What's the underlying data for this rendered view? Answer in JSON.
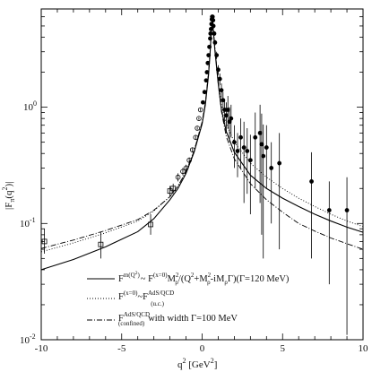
{
  "chart_data": {
    "type": "scatter",
    "title": "",
    "xlabel": "q² [GeV²]",
    "ylabel": "|F_π(q²)|",
    "xlim": [
      -10,
      10
    ],
    "ylim": [
      0.01,
      7
    ],
    "yscale": "log",
    "grid": false,
    "legend_placement": "bottom-right",
    "x_ticks": [
      -10,
      -5,
      0,
      5,
      10
    ],
    "x_tick_labels": [
      "-10",
      "-5",
      "0",
      "5",
      "10"
    ],
    "y_ticks": [
      0.01,
      0.1,
      1
    ],
    "y_tick_labels": [
      "10⁻²",
      "10⁻¹",
      "10⁰"
    ],
    "series": [
      {
        "name": "F^{m(Q²)} ~ F^{(x=0)} M²_ρ/(Q²+M²_ρ−iM_ρΓ) (Γ=120 MeV)",
        "legend_text": "F^{m(Q²)} ~ F^{(x=0)} M²_ρ/(Q² + M²_ρ - iM_ρΓ)(Γ=120 MeV)",
        "style": "solid",
        "x": [
          -10,
          -8,
          -6,
          -4,
          -3,
          -2,
          -1.5,
          -1,
          -0.5,
          0,
          0.2,
          0.4,
          0.5,
          0.55,
          0.6,
          0.65,
          0.7,
          0.8,
          1,
          1.2,
          1.5,
          2,
          3,
          4,
          5,
          6,
          7,
          8,
          9,
          10
        ],
        "y": [
          0.04,
          0.049,
          0.063,
          0.085,
          0.11,
          0.16,
          0.2,
          0.27,
          0.41,
          0.72,
          1.05,
          1.9,
          3.0,
          4.0,
          4.9,
          5.1,
          4.5,
          3.0,
          1.6,
          0.95,
          0.62,
          0.41,
          0.26,
          0.2,
          0.165,
          0.14,
          0.12,
          0.105,
          0.093,
          0.084
        ]
      },
      {
        "name": "F^{(x=0)} ~ F^{AdS/QCD}_{(u.c.)}",
        "legend_text": "F^{(x=0)} ~ F^{AdS/QCD}_{(u.c.)}",
        "style": "dotted",
        "x": [
          -10,
          -8,
          -6,
          -4,
          -3,
          -2,
          -1.5,
          -1,
          -0.5,
          0,
          0.2,
          0.4,
          0.5,
          0.55,
          0.6,
          0.65,
          0.7,
          0.8,
          1,
          1.2,
          1.5,
          2,
          3,
          4,
          5,
          6,
          7,
          8,
          9,
          10
        ],
        "y": [
          0.057,
          0.068,
          0.083,
          0.105,
          0.128,
          0.17,
          0.21,
          0.28,
          0.42,
          0.74,
          1.08,
          1.95,
          3.05,
          4.1,
          5.0,
          5.2,
          4.6,
          3.1,
          1.7,
          1.05,
          0.72,
          0.5,
          0.33,
          0.25,
          0.2,
          0.165,
          0.14,
          0.12,
          0.105,
          0.094
        ]
      },
      {
        "name": "F^{AdS/QCD}_{(confined)} with width Γ=100 MeV",
        "legend_text": "F^{AdS/QCD}_{(confined)} with width Γ=100 MeV",
        "style": "dashdot",
        "x": [
          -10,
          -8,
          -6,
          -4,
          -3,
          -2,
          -1.5,
          -1,
          -0.5,
          0,
          0.2,
          0.4,
          0.5,
          0.55,
          0.6,
          0.65,
          0.7,
          0.8,
          1,
          1.2,
          1.5,
          2,
          3,
          4,
          5,
          6,
          7,
          8,
          9,
          10
        ],
        "y": [
          0.061,
          0.072,
          0.087,
          0.108,
          0.13,
          0.17,
          0.21,
          0.28,
          0.42,
          0.75,
          1.1,
          2.0,
          3.1,
          4.2,
          5.3,
          5.6,
          4.9,
          3.2,
          1.6,
          0.92,
          0.56,
          0.36,
          0.22,
          0.16,
          0.125,
          0.1,
          0.086,
          0.075,
          0.067,
          0.06
        ]
      }
    ],
    "measurements": {
      "x": [
        -9.8,
        -6.3,
        -3.2,
        -2.0,
        -1.8,
        -1.5,
        -1.2,
        -1.0,
        -0.8,
        -0.6,
        -0.4,
        -0.3,
        -0.2,
        -0.1,
        0.05,
        0.15,
        0.25,
        0.3,
        0.35,
        0.4,
        0.45,
        0.5,
        0.52,
        0.55,
        0.58,
        0.6,
        0.62,
        0.65,
        0.68,
        0.7,
        0.75,
        0.8,
        0.9,
        1.0,
        1.1,
        1.2,
        1.3,
        1.4,
        1.5,
        1.6,
        1.7,
        1.8,
        2.0,
        2.2,
        2.4,
        2.6,
        2.8,
        3.0,
        3.3,
        3.6,
        3.7,
        3.8,
        4.0,
        4.3,
        4.8,
        6.8,
        7.9,
        9.0
      ],
      "y": [
        0.07,
        0.066,
        0.098,
        0.19,
        0.2,
        0.25,
        0.28,
        0.3,
        0.35,
        0.43,
        0.55,
        0.66,
        0.8,
        0.95,
        1.1,
        1.35,
        1.7,
        2.0,
        2.4,
        2.8,
        3.3,
        3.9,
        4.3,
        4.7,
        5.2,
        5.7,
        6.0,
        6.0,
        5.6,
        5.0,
        4.3,
        3.6,
        2.8,
        2.1,
        1.75,
        1.4,
        1.15,
        0.95,
        0.85,
        0.95,
        0.75,
        0.8,
        0.5,
        0.42,
        0.55,
        0.45,
        0.42,
        0.35,
        0.55,
        0.6,
        0.48,
        0.38,
        0.45,
        0.3,
        0.33,
        0.23,
        0.13,
        0.13
      ],
      "ylow": [
        0.055,
        0.05,
        0.08,
        0.17,
        0.18,
        0.23,
        0.26,
        0.28,
        0.33,
        0.41,
        0.53,
        0.64,
        0.78,
        0.92,
        1.07,
        1.3,
        1.65,
        1.95,
        2.3,
        2.7,
        3.2,
        3.8,
        4.2,
        4.6,
        5.0,
        5.5,
        5.8,
        5.8,
        5.4,
        4.8,
        4.1,
        3.4,
        2.6,
        1.9,
        1.55,
        1.2,
        0.95,
        0.75,
        0.6,
        0.65,
        0.5,
        0.55,
        0.3,
        0.25,
        0.3,
        0.15,
        0.18,
        0.12,
        0.2,
        0.15,
        0.08,
        0.05,
        0.2,
        0.1,
        0.06,
        0.05,
        0.03,
        0.011
      ],
      "yhigh": [
        0.09,
        0.085,
        0.12,
        0.21,
        0.22,
        0.27,
        0.3,
        0.32,
        0.37,
        0.45,
        0.57,
        0.68,
        0.82,
        0.98,
        1.13,
        1.4,
        1.75,
        2.05,
        2.5,
        2.9,
        3.4,
        4.0,
        4.4,
        4.8,
        5.4,
        5.9,
        6.2,
        6.2,
        5.8,
        5.2,
        4.5,
        3.8,
        3.0,
        2.3,
        1.95,
        1.6,
        1.35,
        1.15,
        1.1,
        1.25,
        1.0,
        1.05,
        0.7,
        0.6,
        0.8,
        0.75,
        0.66,
        0.58,
        0.9,
        1.05,
        0.88,
        0.71,
        0.7,
        0.5,
        0.6,
        0.41,
        0.23,
        0.25
      ]
    }
  },
  "axes": {
    "xlabel_main": "q",
    "xlabel_sup": "2",
    "xlabel_unit": " [GeV",
    "xlabel_unit_sup": "2",
    "xlabel_close": "]",
    "ylabel_main": "|F",
    "ylabel_sub": "π",
    "ylabel_mid": "(q",
    "ylabel_sup": "2",
    "ylabel_end": ")|",
    "x_tick_labels": [
      "-10",
      "-5",
      "0",
      "5",
      "10"
    ],
    "y_tick_base": [
      "10",
      "10",
      "10"
    ],
    "y_tick_exp": [
      "-2",
      "-1",
      "0"
    ]
  },
  "legend": {
    "l1_a": "F",
    "l1_a_sup": "m(Q",
    "l1_a_sup2": "2",
    "l1_a_sup3": ")",
    "l1_b": "~ F",
    "l1_b_sup": "(x=0)",
    "l1_c": "M",
    "l1_c_sup": "2",
    "l1_c_sub": "ρ",
    "l1_d": "/(Q",
    "l1_d_sup": "2",
    "l1_e": "+M",
    "l1_e_sup": "2",
    "l1_e_sub": "ρ",
    "l1_f": "-iM",
    "l1_f_sub": "ρ",
    "l1_g": "Γ)(Γ=120 MeV)",
    "l2_a": "F",
    "l2_a_sup": "(x=0)",
    "l2_b": "~F",
    "l2_b_sup": "AdS/QCD",
    "l2_b_sub": "(u.c.)",
    "l3_a": "F",
    "l3_a_sup": "AdS/QCD",
    "l3_a_sub": "(confined)",
    "l3_b": "with  width Γ=100 MeV"
  }
}
